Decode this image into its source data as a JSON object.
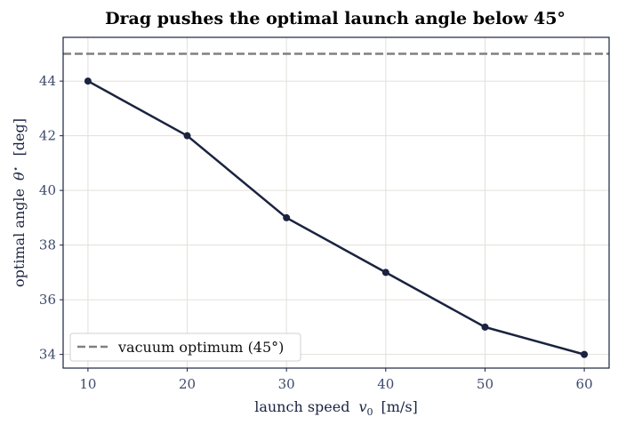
{
  "chart_data": {
    "type": "line",
    "title": "Drag pushes the optimal launch angle below 45°",
    "xlabel": "launch speed",
    "xlabel_symbol": "v",
    "xlabel_subscript": "0",
    "xlabel_unit": "[m/s]",
    "ylabel": "optimal angle",
    "ylabel_symbol": "θ",
    "ylabel_superscript": "⋆",
    "ylabel_unit": "[deg]",
    "xlim": [
      7.5,
      62.5
    ],
    "ylim": [
      33.5,
      45.6
    ],
    "x_ticks": [
      10,
      20,
      30,
      40,
      50,
      60
    ],
    "y_ticks": [
      34,
      36,
      38,
      40,
      42,
      44
    ],
    "grid": true,
    "series": [
      {
        "x": [
          10,
          20,
          30,
          40,
          50,
          60
        ],
        "values": [
          44,
          42,
          39,
          37,
          35,
          34
        ],
        "color": "#1a2340",
        "marker": "circle"
      }
    ],
    "reference_line": {
      "y": 45,
      "name": "vacuum optimum (45°)",
      "color": "#808080",
      "style": "dashed"
    },
    "legend": {
      "placement": "lower-left",
      "entries": [
        "vacuum optimum (45°)"
      ]
    },
    "colors": {
      "axis": "#1a2340",
      "grid": "#e3e0da",
      "tick_text": "#3d4a6b"
    }
  }
}
